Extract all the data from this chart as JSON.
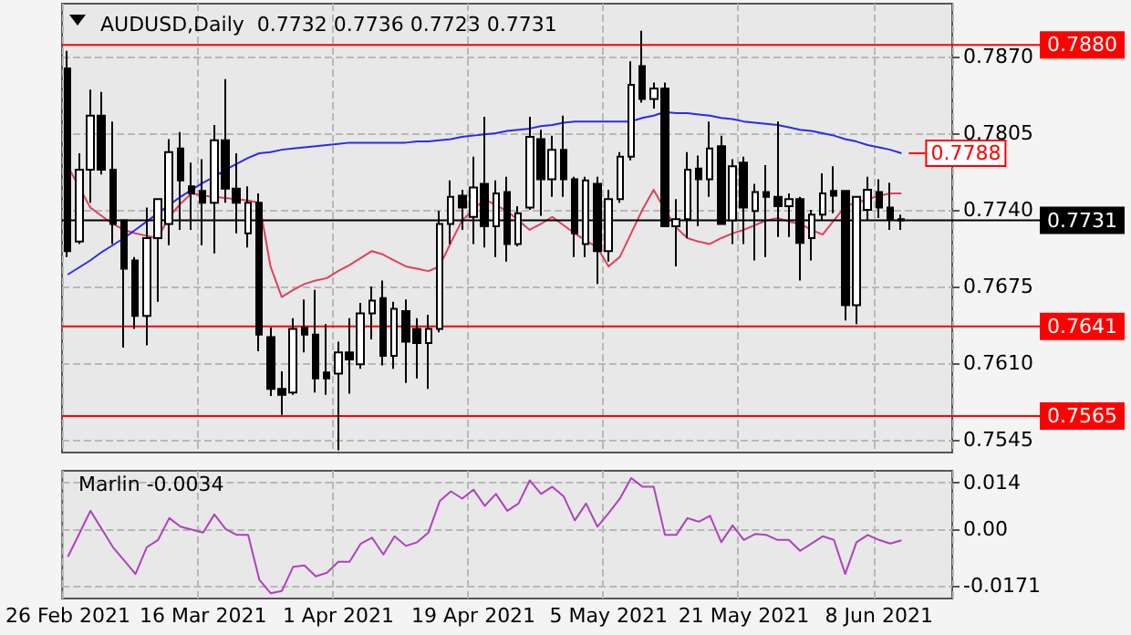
{
  "chart_data": [
    {
      "type": "candlestick",
      "title": "AUDUSD,Daily  0.7732 0.7736 0.7723 0.7731",
      "tick_labels": "y",
      "grid": true,
      "categories": [
        null,
        null,
        null,
        null,
        null,
        null,
        null,
        null,
        null,
        null,
        null,
        null,
        null,
        null,
        null,
        null,
        null,
        null,
        null,
        null,
        null,
        null,
        null,
        null,
        null,
        null,
        null,
        null,
        null,
        null,
        null,
        null,
        null,
        null,
        null,
        null,
        null,
        null,
        null,
        null,
        null,
        null,
        null,
        null,
        null,
        null,
        null,
        null,
        null,
        null,
        null,
        null,
        null,
        null,
        null,
        null,
        null,
        null,
        null,
        null,
        null,
        null,
        null,
        null,
        null,
        null,
        null,
        null,
        null,
        null,
        null,
        null,
        null,
        null,
        null,
        null,
        null,
        null,
        null
      ],
      "ohlc": [
        [
          0.786,
          0.7875,
          0.77,
          0.7705
        ],
        [
          0.7713,
          0.7788,
          0.7711,
          0.7774
        ],
        [
          0.7774,
          0.7842,
          0.7746,
          0.782
        ],
        [
          0.782,
          0.784,
          0.777,
          0.7774
        ],
        [
          0.7774,
          0.7815,
          0.7711,
          0.7728
        ],
        [
          0.7731,
          0.7731,
          0.7623,
          0.769
        ],
        [
          0.7697,
          0.77,
          0.7639,
          0.765
        ],
        [
          0.765,
          0.7742,
          0.7625,
          0.7716
        ],
        [
          0.7716,
          0.7749,
          0.7662,
          0.7749
        ],
        [
          0.7728,
          0.78,
          0.771,
          0.7789
        ],
        [
          0.7792,
          0.7806,
          0.7723,
          0.7765
        ],
        [
          0.776,
          0.778,
          0.7723,
          0.7754
        ],
        [
          0.7756,
          0.7783,
          0.771,
          0.7746
        ],
        [
          0.7746,
          0.7812,
          0.7703,
          0.7799
        ],
        [
          0.7799,
          0.7851,
          0.7746,
          0.7758
        ],
        [
          0.7758,
          0.7788,
          0.772,
          0.7746
        ],
        [
          0.772,
          0.776,
          0.7708,
          0.7746
        ],
        [
          0.7746,
          0.7754,
          0.762,
          0.7634
        ],
        [
          0.7632,
          0.764,
          0.7582,
          0.7588
        ],
        [
          0.7588,
          0.7603,
          0.7566,
          0.7583
        ],
        [
          0.7585,
          0.7648,
          0.7583,
          0.7639
        ],
        [
          0.764,
          0.7664,
          0.7619,
          0.7634
        ],
        [
          0.7634,
          0.7672,
          0.7585,
          0.7597
        ],
        [
          0.7602,
          0.7643,
          0.7583,
          0.7597
        ],
        [
          0.7601,
          0.7628,
          0.7536,
          0.7619
        ],
        [
          0.7619,
          0.7648,
          0.7584,
          0.7613
        ],
        [
          0.7609,
          0.7661,
          0.7605,
          0.7652
        ],
        [
          0.7652,
          0.7675,
          0.763,
          0.7663
        ],
        [
          0.7665,
          0.768,
          0.7608,
          0.7616
        ],
        [
          0.7616,
          0.7662,
          0.7605,
          0.7656
        ],
        [
          0.7654,
          0.7664,
          0.7593,
          0.7628
        ],
        [
          0.7639,
          0.7648,
          0.7597,
          0.7627
        ],
        [
          0.7627,
          0.7651,
          0.7588,
          0.7639
        ],
        [
          0.7639,
          0.7739,
          0.7636,
          0.7728
        ],
        [
          0.7728,
          0.7765,
          0.7711,
          0.7751
        ],
        [
          0.7752,
          0.7757,
          0.7723,
          0.7742
        ],
        [
          0.7734,
          0.7785,
          0.7711,
          0.7759
        ],
        [
          0.7762,
          0.7819,
          0.7708,
          0.7726
        ],
        [
          0.7726,
          0.7765,
          0.77,
          0.7754
        ],
        [
          0.7755,
          0.7768,
          0.7696,
          0.7711
        ],
        [
          0.7711,
          0.7743,
          0.7709,
          0.7737
        ],
        [
          0.7742,
          0.7819,
          0.774,
          0.7802
        ],
        [
          0.78,
          0.7808,
          0.7735,
          0.7766
        ],
        [
          0.7766,
          0.7803,
          0.7751,
          0.7791
        ],
        [
          0.7791,
          0.782,
          0.7751,
          0.7766
        ],
        [
          0.7766,
          0.7768,
          0.77,
          0.772
        ],
        [
          0.7711,
          0.7768,
          0.77,
          0.7765
        ],
        [
          0.7762,
          0.7768,
          0.7677,
          0.7705
        ],
        [
          0.7705,
          0.7757,
          0.7696,
          0.7749
        ],
        [
          0.7749,
          0.7789,
          0.7746,
          0.7785
        ],
        [
          0.7785,
          0.7866,
          0.7782,
          0.7846
        ],
        [
          0.7862,
          0.7892,
          0.7831,
          0.7834
        ],
        [
          0.7834,
          0.7848,
          0.7826,
          0.7843
        ],
        [
          0.7843,
          0.7848,
          0.7726,
          0.7726
        ],
        [
          0.7726,
          0.7749,
          0.7692,
          0.7732
        ],
        [
          0.7732,
          0.7789,
          0.7716,
          0.7774
        ],
        [
          0.7775,
          0.7786,
          0.7726,
          0.7766
        ],
        [
          0.7766,
          0.7815,
          0.7751,
          0.7792
        ],
        [
          0.7794,
          0.7803,
          0.7728,
          0.7728
        ],
        [
          0.7731,
          0.7783,
          0.7711,
          0.7777
        ],
        [
          0.778,
          0.7785,
          0.7711,
          0.7742
        ],
        [
          0.7739,
          0.7762,
          0.7697,
          0.7755
        ],
        [
          0.7755,
          0.7778,
          0.77,
          0.7751
        ],
        [
          0.7751,
          0.7815,
          0.7717,
          0.7743
        ],
        [
          0.7743,
          0.7754,
          0.7717,
          0.7749
        ],
        [
          0.7749,
          0.7751,
          0.768,
          0.7712
        ],
        [
          0.7716,
          0.774,
          0.7697,
          0.7736
        ],
        [
          0.7736,
          0.7771,
          0.7731,
          0.7754
        ],
        [
          0.7756,
          0.7777,
          0.7737,
          0.7752
        ],
        [
          0.7756,
          0.7756,
          0.7646,
          0.7659
        ],
        [
          0.7659,
          0.7751,
          0.7643,
          0.7751
        ],
        [
          0.774,
          0.7768,
          0.7731,
          0.7757
        ],
        [
          0.7755,
          0.7766,
          0.7733,
          0.7742
        ],
        [
          0.7742,
          0.7763,
          0.7723,
          0.7732
        ],
        [
          0.7732,
          0.7736,
          0.7723,
          0.7731
        ],
        null,
        null,
        null,
        null
      ],
      "series": [
        {
          "type": "line",
          "color": "#e0405a",
          "values": [
            0.7777,
            0.776,
            0.7742,
            0.7735,
            0.7728,
            0.7723,
            0.772,
            0.7718,
            0.7716,
            0.7734,
            0.7745,
            0.7754,
            0.7752,
            0.7751,
            0.775,
            0.7749,
            0.7748,
            0.7746,
            0.7692,
            0.7666,
            0.7672,
            0.7677,
            0.768,
            0.7682,
            0.7688,
            0.7693,
            0.7699,
            0.7705,
            0.7702,
            0.7697,
            0.7692,
            0.769,
            0.7688,
            0.7692,
            0.7712,
            0.7731,
            0.774,
            0.7749,
            0.7744,
            0.7739,
            0.7731,
            0.7723,
            0.7728,
            0.7734,
            0.7727,
            0.772,
            0.7714,
            0.7708,
            0.7692,
            0.77,
            0.772,
            0.774,
            0.7757,
            0.774,
            0.7725,
            0.7716,
            0.7713,
            0.7711,
            0.7716,
            0.772,
            0.7723,
            0.7727,
            0.7731,
            0.7733,
            0.773,
            0.7728,
            0.7723,
            0.7719,
            0.7731,
            0.7743,
            0.7746,
            0.7749,
            0.7752,
            0.7754,
            0.7754,
            null,
            null,
            null,
            null
          ]
        },
        {
          "type": "line",
          "color": "#2a2af0",
          "values": [
            0.7685,
            0.7691,
            0.7697,
            0.7704,
            0.771,
            0.7716,
            0.7723,
            0.773,
            0.7737,
            0.7744,
            0.7751,
            0.7757,
            0.7763,
            0.7768,
            0.7774,
            0.7779,
            0.7784,
            0.7788,
            0.7789,
            0.7791,
            0.7792,
            0.7793,
            0.7794,
            0.7795,
            0.7796,
            0.7797,
            0.7797,
            0.7797,
            0.7797,
            0.7797,
            0.7797,
            0.7798,
            0.7798,
            0.7799,
            0.78,
            0.7802,
            0.7803,
            0.7804,
            0.7805,
            0.7807,
            0.7808,
            0.7809,
            0.7811,
            0.7812,
            0.7814,
            0.7815,
            0.7815,
            0.7815,
            0.7815,
            0.7815,
            0.7815,
            0.7818,
            0.782,
            0.7823,
            0.7822,
            0.7822,
            0.7821,
            0.782,
            0.7818,
            0.7817,
            0.7815,
            0.7814,
            0.7813,
            0.7812,
            0.781,
            0.7808,
            0.7807,
            0.7805,
            0.7803,
            0.78,
            0.7798,
            0.7795,
            0.7793,
            0.7791,
            0.7788,
            null,
            null,
            null,
            null
          ]
        }
      ],
      "ylim": [
        0.7534,
        0.7915
      ],
      "yticks": [
        {
          "value": 0.787,
          "label": "0.7870"
        },
        {
          "value": 0.7805,
          "label": "0.7805"
        },
        {
          "value": 0.774,
          "label": "0.7740"
        },
        {
          "value": 0.7675,
          "label": "0.7675"
        },
        {
          "value": 0.761,
          "label": "0.7610"
        },
        {
          "value": 0.7545,
          "label": "0.7545"
        }
      ],
      "ref_lines": [
        {
          "axis": "y",
          "value": 0.788,
          "label": "0.7880",
          "color": "#ff0000"
        },
        {
          "axis": "y",
          "value": 0.7641,
          "label": "0.7641",
          "color": "#ff0000"
        },
        {
          "axis": "y",
          "value": 0.7565,
          "label": "0.7565",
          "color": "#ff0000"
        },
        {
          "axis": "y",
          "value": 0.7731,
          "label": "0.7731",
          "color": "#000000"
        }
      ],
      "annotations": [
        {
          "text": "0.7788",
          "y": 0.7788
        }
      ]
    },
    {
      "type": "line",
      "title": "Marlin -0.0034",
      "grid": true,
      "categories": [
        "26 Feb 2021",
        null,
        null,
        null,
        null,
        null,
        null,
        null,
        null,
        null,
        null,
        null,
        "16 Mar 2021",
        null,
        null,
        null,
        null,
        null,
        null,
        null,
        null,
        null,
        null,
        null,
        "1 Apr 2021",
        null,
        null,
        null,
        null,
        null,
        null,
        null,
        null,
        null,
        null,
        null,
        "19 Apr 2021",
        null,
        null,
        null,
        null,
        null,
        null,
        null,
        null,
        null,
        null,
        null,
        "5 May 2021",
        null,
        null,
        null,
        null,
        null,
        null,
        null,
        null,
        null,
        null,
        null,
        "21 May 2021",
        null,
        null,
        null,
        null,
        null,
        null,
        null,
        null,
        null,
        null,
        null,
        "8 Jun 2021",
        null,
        null,
        null,
        null,
        null,
        null
      ],
      "series": [
        {
          "color": "#b040c0",
          "values": [
            -0.0084,
            -0.0015,
            0.0055,
            0.0,
            -0.0055,
            -0.0095,
            -0.0136,
            -0.0055,
            -0.0033,
            0.0033,
            0.0007,
            -0.0002,
            -0.0011,
            0.0044,
            0.0,
            -0.0018,
            -0.0018,
            -0.0154,
            -0.0194,
            -0.0187,
            -0.0114,
            -0.011,
            -0.0143,
            -0.0132,
            -0.0099,
            -0.0099,
            -0.0044,
            -0.0026,
            -0.0077,
            -0.0022,
            -0.0051,
            -0.004,
            -0.0011,
            0.0084,
            0.0114,
            0.0092,
            0.0119,
            0.007,
            0.0106,
            0.0055,
            0.0077,
            0.0147,
            0.0106,
            0.0128,
            0.0099,
            0.0026,
            0.0077,
            0.0007,
            0.0048,
            0.0092,
            0.0154,
            0.0128,
            0.0128,
            -0.0018,
            -0.0018,
            0.0033,
            0.0022,
            0.004,
            -0.004,
            0.0011,
            -0.0033,
            -0.0015,
            -0.0018,
            -0.0033,
            -0.0033,
            -0.0066,
            -0.0044,
            -0.0022,
            -0.0033,
            -0.0136,
            -0.004,
            -0.0018,
            -0.0033,
            -0.0044,
            -0.0034,
            null,
            null,
            null,
            null
          ]
        }
      ],
      "ylim": [
        -0.021,
        0.0176
      ],
      "yticks": [
        {
          "value": 0.014,
          "label": "0.014"
        },
        {
          "value": 0,
          "label": "0.00"
        },
        {
          "value": -0.0171,
          "label": "-0.0171"
        }
      ]
    }
  ]
}
